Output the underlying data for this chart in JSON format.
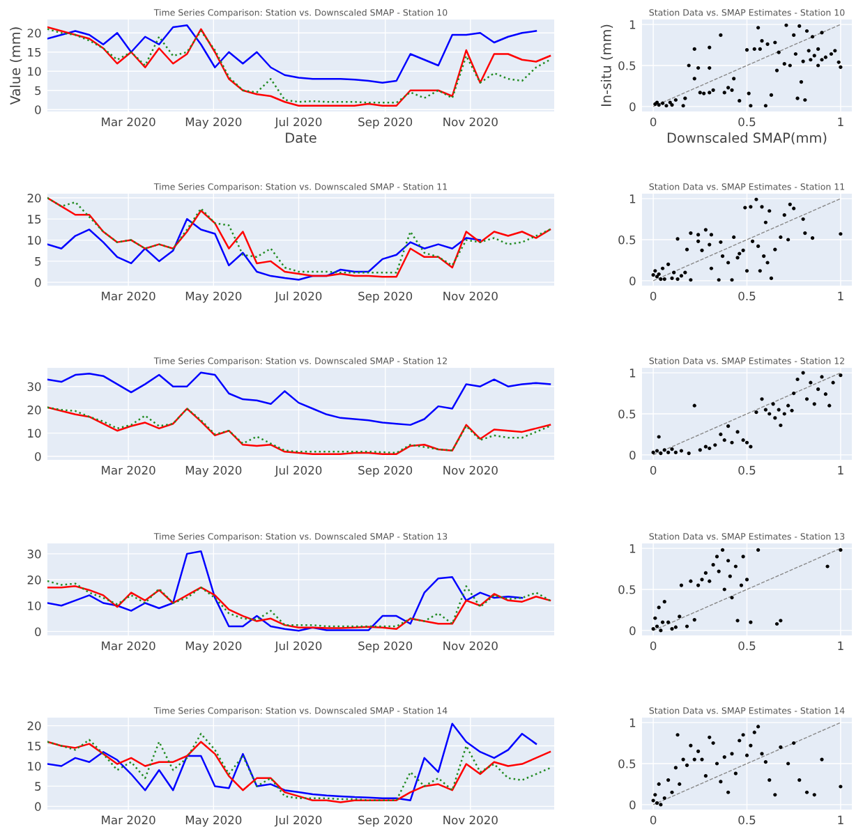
{
  "chart_data": [
    {
      "type": "line",
      "title": "Time Series Comparison: Station vs. Downscaled SMAP - Station 10",
      "xlabel": "Date",
      "ylabel": "Value (mm)",
      "grid": true,
      "xlim": [
        "2020-01-03",
        "2020-12-31"
      ],
      "xticks": [
        {
          "value": "2020-03-01",
          "label": "Mar 2020"
        },
        {
          "value": "2020-05-01",
          "label": "May 2020"
        },
        {
          "value": "2020-07-01",
          "label": "Jul 2020"
        },
        {
          "value": "2020-09-01",
          "label": "Sep 2020"
        },
        {
          "value": "2020-11-01",
          "label": "Nov 2020"
        }
      ],
      "ylim": [
        -0.5,
        23.5
      ],
      "yticks": [
        0,
        5,
        10,
        15,
        20
      ],
      "x": [
        "2020-01-03",
        "2020-01-13",
        "2020-01-23",
        "2020-02-02",
        "2020-02-12",
        "2020-02-22",
        "2020-03-03",
        "2020-03-13",
        "2020-03-23",
        "2020-04-02",
        "2020-04-12",
        "2020-04-22",
        "2020-05-02",
        "2020-05-12",
        "2020-05-22",
        "2020-06-01",
        "2020-06-11",
        "2020-06-21",
        "2020-07-01",
        "2020-07-11",
        "2020-07-21",
        "2020-07-31",
        "2020-08-10",
        "2020-08-20",
        "2020-08-30",
        "2020-09-09",
        "2020-09-19",
        "2020-09-29",
        "2020-10-09",
        "2020-10-19",
        "2020-10-29",
        "2020-11-08",
        "2020-11-18",
        "2020-11-28",
        "2020-12-08",
        "2020-12-18",
        "2020-12-28"
      ],
      "series": [
        {
          "color": "#0000ff",
          "line_style": "solid",
          "values": [
            18.5,
            19.5,
            20.5,
            19.5,
            17,
            20,
            15,
            19,
            17,
            21.5,
            22,
            17,
            11,
            15,
            12,
            15,
            11,
            9,
            8.3,
            8,
            8,
            8,
            7.8,
            7.5,
            7,
            7.5,
            14.5,
            13,
            11.5,
            19.5,
            19.5,
            20,
            17.5,
            19,
            20,
            20.5,
            null
          ]
        },
        {
          "color": "#ff0000",
          "line_style": "solid",
          "values": [
            21.5,
            20.5,
            19.5,
            18.5,
            16,
            12,
            15,
            11,
            16,
            12,
            14.5,
            21,
            15,
            8,
            5,
            4,
            3.5,
            2,
            1,
            1,
            1,
            1,
            1,
            1.5,
            1,
            1,
            5,
            5,
            5,
            3.5,
            15.5,
            7,
            14.5,
            14.5,
            13,
            12.5,
            14
          ]
        },
        {
          "color": "#228b22",
          "line_style": "dotted",
          "values": [
            21,
            20,
            19.5,
            18,
            16,
            13,
            15,
            11.5,
            19,
            14,
            15,
            20.5,
            15.5,
            8.5,
            5,
            4.5,
            8,
            2.5,
            2,
            2.2,
            2,
            2,
            2,
            1.8,
            1.8,
            1.8,
            4.5,
            3,
            5,
            3,
            14,
            7,
            9.5,
            8,
            7.5,
            11,
            13
          ]
        }
      ]
    },
    {
      "type": "scatter",
      "title": "Station Data vs. SMAP Estimates - Station 10",
      "xlabel": "Downscaled SMAP(mm)",
      "ylabel": "In-situ (mm)",
      "grid": true,
      "xlim": [
        -0.06,
        1.06
      ],
      "xticks": [
        0,
        0.5,
        1
      ],
      "ylim": [
        -0.06,
        1.06
      ],
      "yticks": [
        0,
        0.5,
        1
      ],
      "series": [
        {
          "color": "#000000",
          "marker": "circle",
          "x": [
            0.01,
            0.03,
            0.05,
            0.07,
            0.09,
            0.1,
            0.02,
            0.12,
            0.16,
            0.17,
            0.19,
            0.22,
            0.22,
            0.24,
            0.25,
            0.27,
            0.3,
            0.3,
            0.3,
            0.32,
            0.36,
            0.38,
            0.4,
            0.42,
            0.43,
            0.46,
            0.5,
            0.51,
            0.52,
            0.54,
            0.56,
            0.57,
            0.58,
            0.6,
            0.61,
            0.63,
            0.65,
            0.66,
            0.67,
            0.7,
            0.71,
            0.73,
            0.75,
            0.76,
            0.77,
            0.78,
            0.79,
            0.8,
            0.81,
            0.82,
            0.83,
            0.84,
            0.85,
            0.86,
            0.88,
            0.88,
            0.9,
            0.9,
            0.92,
            0.95,
            0.97,
            0.99,
            1.0
          ],
          "values": [
            0.03,
            0.02,
            0.04,
            0.01,
            0.05,
            0.02,
            0.05,
            0.08,
            0.01,
            0.1,
            0.5,
            0.7,
            0.34,
            0.47,
            0.17,
            0.16,
            0.72,
            0.47,
            0.17,
            0.2,
            0.87,
            0.17,
            0.23,
            0.2,
            0.34,
            0.07,
            0.69,
            0.16,
            0.01,
            0.7,
            0.96,
            0.7,
            0.8,
            0.01,
            0.76,
            0.14,
            0.78,
            0.44,
            0.66,
            0.52,
            0.99,
            0.5,
            0.87,
            0.64,
            0.1,
            0.98,
            0.3,
            0.55,
            0.08,
            0.92,
            0.68,
            0.57,
            0.85,
            0.62,
            0.7,
            0.5,
            0.9,
            0.57,
            0.6,
            0.64,
            0.68,
            0.54,
            0.48
          ]
        },
        {
          "type": "line",
          "color": "#888888",
          "line_style": "dashed",
          "x": [
            0,
            1
          ],
          "values": [
            0,
            1
          ]
        }
      ]
    },
    {
      "type": "line",
      "title": "Time Series Comparison: Station vs. Downscaled SMAP - Station 11",
      "grid": true,
      "xlim": [
        "2020-01-03",
        "2020-12-31"
      ],
      "xticks": [
        {
          "value": "2020-03-01",
          "label": "Mar 2020"
        },
        {
          "value": "2020-05-01",
          "label": "May 2020"
        },
        {
          "value": "2020-07-01",
          "label": "Jul 2020"
        },
        {
          "value": "2020-09-01",
          "label": "Sep 2020"
        },
        {
          "value": "2020-11-01",
          "label": "Nov 2020"
        }
      ],
      "ylim": [
        -0.8,
        21
      ],
      "yticks": [
        0,
        5,
        10,
        15,
        20
      ],
      "x": [
        "2020-01-03",
        "2020-01-13",
        "2020-01-23",
        "2020-02-02",
        "2020-02-12",
        "2020-02-22",
        "2020-03-03",
        "2020-03-13",
        "2020-03-23",
        "2020-04-02",
        "2020-04-12",
        "2020-04-22",
        "2020-05-02",
        "2020-05-12",
        "2020-05-22",
        "2020-06-01",
        "2020-06-11",
        "2020-06-21",
        "2020-07-01",
        "2020-07-11",
        "2020-07-21",
        "2020-07-31",
        "2020-08-10",
        "2020-08-20",
        "2020-08-30",
        "2020-09-09",
        "2020-09-19",
        "2020-09-29",
        "2020-10-09",
        "2020-10-19",
        "2020-10-29",
        "2020-11-08",
        "2020-11-18",
        "2020-11-28",
        "2020-12-08",
        "2020-12-18",
        "2020-12-28"
      ],
      "series": [
        {
          "color": "#0000ff",
          "line_style": "solid",
          "values": [
            9,
            8,
            11,
            12.5,
            9.5,
            6,
            4.5,
            8,
            5,
            7.5,
            15,
            12.5,
            11.5,
            4,
            7,
            2.5,
            1.5,
            1,
            0.6,
            1.5,
            1.5,
            3,
            2.5,
            2.5,
            5.5,
            6.5,
            9.5,
            8,
            9,
            8,
            10.5,
            10,
            null,
            null,
            null,
            null,
            null
          ]
        },
        {
          "color": "#ff0000",
          "line_style": "solid",
          "values": [
            20,
            18,
            16,
            16,
            12,
            9.5,
            10,
            8,
            9,
            8,
            12,
            17,
            14,
            8,
            12,
            4.5,
            5,
            2.5,
            2,
            1.5,
            1.5,
            2,
            1.5,
            1.5,
            1.3,
            1.3,
            8,
            6,
            6,
            3.5,
            12,
            9.5,
            12,
            11,
            12,
            10.5,
            12.5
          ]
        },
        {
          "color": "#228b22",
          "line_style": "dotted",
          "values": [
            20,
            18,
            19,
            15.5,
            12,
            9.5,
            10,
            8,
            9,
            8,
            12.5,
            17.5,
            14,
            13.5,
            6.5,
            6,
            8,
            3.5,
            2.5,
            2.5,
            2.5,
            2.3,
            2.3,
            2.3,
            2.3,
            2.3,
            12,
            7,
            6,
            4,
            10,
            9.5,
            10.5,
            9,
            9.5,
            11,
            12.5
          ]
        }
      ]
    },
    {
      "type": "scatter",
      "title": "Station Data vs. SMAP Estimates - Station 11",
      "grid": true,
      "xlim": [
        -0.06,
        1.06
      ],
      "xticks": [
        0,
        0.5,
        1
      ],
      "ylim": [
        -0.06,
        1.06
      ],
      "yticks": [
        0,
        0.5,
        1
      ],
      "series": [
        {
          "color": "#000000",
          "marker": "circle",
          "x": [
            0.0,
            0.01,
            0.02,
            0.03,
            0.04,
            0.05,
            0.06,
            0.08,
            0.1,
            0.11,
            0.13,
            0.13,
            0.15,
            0.17,
            0.18,
            0.2,
            0.2,
            0.24,
            0.24,
            0.26,
            0.28,
            0.3,
            0.31,
            0.31,
            0.35,
            0.36,
            0.37,
            0.4,
            0.42,
            0.43,
            0.45,
            0.46,
            0.48,
            0.49,
            0.5,
            0.52,
            0.53,
            0.55,
            0.56,
            0.57,
            0.58,
            0.59,
            0.6,
            0.61,
            0.62,
            0.63,
            0.65,
            0.68,
            0.7,
            0.72,
            0.73,
            0.75,
            0.8,
            0.81,
            0.85,
            1.0
          ],
          "values": [
            0.07,
            0.12,
            0.05,
            0.08,
            0.02,
            0.15,
            0.02,
            0.2,
            0.03,
            0.1,
            0.51,
            0.02,
            0.06,
            0.1,
            0.38,
            0.58,
            0.01,
            0.48,
            0.56,
            0.37,
            0.62,
            0.44,
            0.15,
            0.56,
            0.01,
            0.47,
            0.3,
            0.22,
            0.01,
            0.53,
            0.28,
            0.33,
            0.37,
            0.89,
            0.12,
            0.9,
            0.48,
            0.99,
            0.42,
            0.12,
            0.9,
            0.3,
            0.71,
            0.22,
            0.85,
            0.03,
            0.38,
            0.53,
            0.8,
            0.5,
            0.93,
            0.88,
            0.75,
            0.58,
            0.52,
            0.57
          ]
        },
        {
          "type": "line",
          "color": "#888888",
          "line_style": "dashed",
          "x": [
            0,
            1
          ],
          "values": [
            0,
            1
          ]
        }
      ]
    },
    {
      "type": "line",
      "title": "Time Series Comparison: Station vs. Downscaled SMAP - Station 12",
      "grid": true,
      "xlim": [
        "2020-01-03",
        "2020-12-31"
      ],
      "xticks": [
        {
          "value": "2020-03-01",
          "label": "Mar 2020"
        },
        {
          "value": "2020-05-01",
          "label": "May 2020"
        },
        {
          "value": "2020-07-01",
          "label": "Jul 2020"
        },
        {
          "value": "2020-09-01",
          "label": "Sep 2020"
        },
        {
          "value": "2020-11-01",
          "label": "Nov 2020"
        }
      ],
      "ylim": [
        -1.5,
        38
      ],
      "yticks": [
        0,
        10,
        20,
        30
      ],
      "x": [
        "2020-01-03",
        "2020-01-13",
        "2020-01-23",
        "2020-02-02",
        "2020-02-12",
        "2020-02-22",
        "2020-03-03",
        "2020-03-13",
        "2020-03-23",
        "2020-04-02",
        "2020-04-12",
        "2020-04-22",
        "2020-05-02",
        "2020-05-12",
        "2020-05-22",
        "2020-06-01",
        "2020-06-11",
        "2020-06-21",
        "2020-07-01",
        "2020-07-11",
        "2020-07-21",
        "2020-07-31",
        "2020-08-10",
        "2020-08-20",
        "2020-08-30",
        "2020-09-09",
        "2020-09-19",
        "2020-09-29",
        "2020-10-09",
        "2020-10-19",
        "2020-10-29",
        "2020-11-08",
        "2020-11-18",
        "2020-11-28",
        "2020-12-08",
        "2020-12-18",
        "2020-12-28"
      ],
      "series": [
        {
          "color": "#0000ff",
          "line_style": "solid",
          "values": [
            33,
            32,
            35,
            35.5,
            34.5,
            31,
            27.5,
            31,
            35,
            30,
            30,
            36,
            35,
            27,
            24.5,
            24,
            22.5,
            28,
            23,
            20.5,
            18,
            16.5,
            16,
            15.5,
            14.5,
            14,
            13.5,
            16,
            21.5,
            20.5,
            31,
            30,
            33,
            30,
            31,
            31.5,
            31
          ]
        },
        {
          "color": "#ff0000",
          "line_style": "solid",
          "values": [
            21,
            19.5,
            18,
            17,
            14,
            11,
            13,
            14.5,
            12,
            14,
            20.5,
            15,
            9,
            11,
            5,
            4.5,
            5,
            2,
            1.5,
            1,
            1,
            1,
            1.5,
            1.5,
            1,
            1,
            4.5,
            5,
            3,
            2.5,
            13.5,
            7.5,
            11.5,
            11,
            10.5,
            12,
            13.5
          ]
        },
        {
          "color": "#228b22",
          "line_style": "dotted",
          "values": [
            21,
            20,
            19.5,
            17,
            15,
            12,
            13.5,
            17.5,
            13,
            14,
            20.5,
            15.5,
            9.5,
            11,
            5.5,
            8.5,
            5.5,
            2.5,
            2,
            2,
            2,
            2,
            2,
            2,
            1.8,
            1.5,
            5,
            4,
            3,
            2.5,
            13,
            7,
            9,
            8,
            8,
            10.5,
            13
          ]
        }
      ]
    },
    {
      "type": "scatter",
      "title": "Station Data vs. SMAP Estimates - Station 12",
      "grid": true,
      "xlim": [
        -0.06,
        1.06
      ],
      "xticks": [
        0,
        0.5,
        1
      ],
      "ylim": [
        -0.06,
        1.06
      ],
      "yticks": [
        0,
        0.5,
        1
      ],
      "series": [
        {
          "color": "#000000",
          "marker": "circle",
          "x": [
            0.0,
            0.02,
            0.03,
            0.04,
            0.06,
            0.08,
            0.1,
            0.12,
            0.15,
            0.19,
            0.22,
            0.25,
            0.28,
            0.3,
            0.33,
            0.36,
            0.38,
            0.4,
            0.42,
            0.45,
            0.48,
            0.5,
            0.52,
            0.55,
            0.58,
            0.6,
            0.62,
            0.64,
            0.65,
            0.67,
            0.68,
            0.7,
            0.72,
            0.74,
            0.75,
            0.77,
            0.8,
            0.82,
            0.84,
            0.86,
            0.88,
            0.9,
            0.92,
            0.94,
            0.96,
            1.0
          ],
          "values": [
            0.03,
            0.05,
            0.22,
            0.02,
            0.06,
            0.03,
            0.07,
            0.03,
            0.05,
            0.02,
            0.6,
            0.06,
            0.1,
            0.08,
            0.12,
            0.25,
            0.18,
            0.35,
            0.15,
            0.28,
            0.18,
            0.15,
            0.1,
            0.52,
            0.68,
            0.55,
            0.5,
            0.62,
            0.45,
            0.55,
            0.36,
            0.5,
            0.6,
            0.54,
            0.75,
            0.92,
            1.0,
            0.68,
            0.88,
            0.62,
            0.8,
            0.95,
            0.74,
            0.6,
            0.88,
            0.97
          ]
        },
        {
          "type": "line",
          "color": "#888888",
          "line_style": "dashed",
          "x": [
            0,
            1
          ],
          "values": [
            0,
            1
          ]
        }
      ]
    },
    {
      "type": "line",
      "title": "Time Series Comparison: Station vs. Downscaled SMAP - Station 13",
      "grid": true,
      "xlim": [
        "2020-01-03",
        "2020-12-31"
      ],
      "xticks": [
        {
          "value": "2020-03-01",
          "label": "Mar 2020"
        },
        {
          "value": "2020-05-01",
          "label": "May 2020"
        },
        {
          "value": "2020-07-01",
          "label": "Jul 2020"
        },
        {
          "value": "2020-09-01",
          "label": "Sep 2020"
        },
        {
          "value": "2020-11-01",
          "label": "Nov 2020"
        }
      ],
      "ylim": [
        -1.5,
        34
      ],
      "yticks": [
        0,
        10,
        20,
        30
      ],
      "x": [
        "2020-01-03",
        "2020-01-13",
        "2020-01-23",
        "2020-02-02",
        "2020-02-12",
        "2020-02-22",
        "2020-03-03",
        "2020-03-13",
        "2020-03-23",
        "2020-04-02",
        "2020-04-12",
        "2020-04-22",
        "2020-05-02",
        "2020-05-12",
        "2020-05-22",
        "2020-06-01",
        "2020-06-11",
        "2020-06-21",
        "2020-07-01",
        "2020-07-11",
        "2020-07-21",
        "2020-07-31",
        "2020-08-10",
        "2020-08-20",
        "2020-08-30",
        "2020-09-09",
        "2020-09-19",
        "2020-09-29",
        "2020-10-09",
        "2020-10-19",
        "2020-10-29",
        "2020-11-08",
        "2020-11-18",
        "2020-11-28",
        "2020-12-08",
        "2020-12-18",
        "2020-12-28"
      ],
      "series": [
        {
          "color": "#0000ff",
          "line_style": "solid",
          "values": [
            11,
            10,
            12,
            14,
            11,
            10,
            8,
            11,
            9,
            11,
            30,
            31,
            13,
            2,
            2,
            6,
            2,
            1,
            0.3,
            1.5,
            0.5,
            0.5,
            0.5,
            0.5,
            6,
            6,
            3,
            15,
            20.5,
            21,
            12,
            15,
            13,
            13.5,
            13,
            null,
            null
          ]
        },
        {
          "color": "#ff0000",
          "line_style": "solid",
          "values": [
            17,
            17,
            17.5,
            16,
            14,
            9.5,
            15,
            12,
            16,
            11,
            14,
            17,
            14,
            8.5,
            6,
            4,
            5,
            2.5,
            1.5,
            1.5,
            1.3,
            1.3,
            1.5,
            1.8,
            1.5,
            1,
            5,
            4,
            3,
            3,
            12,
            10,
            14.5,
            12,
            11.5,
            13.5,
            12
          ]
        },
        {
          "color": "#228b22",
          "line_style": "dotted",
          "values": [
            19.5,
            18,
            18.5,
            15,
            13,
            10.5,
            14,
            11,
            16.5,
            11,
            13,
            17,
            13,
            7,
            5,
            4.5,
            8,
            2.5,
            2.5,
            2.5,
            2,
            2,
            2,
            2,
            2,
            2,
            5,
            4,
            7,
            3,
            17.5,
            9.5,
            14,
            12.5,
            13,
            15,
            12
          ]
        }
      ]
    },
    {
      "type": "scatter",
      "title": "Station Data vs. SMAP Estimates - Station 13",
      "grid": true,
      "xlim": [
        -0.06,
        1.06
      ],
      "xticks": [
        0,
        0.5,
        1
      ],
      "ylim": [
        -0.06,
        1.06
      ],
      "yticks": [
        0,
        0.5,
        1
      ],
      "series": [
        {
          "color": "#000000",
          "marker": "circle",
          "x": [
            0.0,
            0.01,
            0.02,
            0.03,
            0.04,
            0.05,
            0.06,
            0.08,
            0.1,
            0.12,
            0.14,
            0.15,
            0.18,
            0.2,
            0.22,
            0.24,
            0.26,
            0.28,
            0.3,
            0.32,
            0.34,
            0.35,
            0.37,
            0.38,
            0.4,
            0.41,
            0.42,
            0.44,
            0.45,
            0.47,
            0.48,
            0.5,
            0.52,
            0.56,
            0.66,
            0.68,
            0.93,
            1.0
          ],
          "values": [
            0.02,
            0.15,
            0.05,
            0.28,
            0.0,
            0.1,
            0.35,
            0.1,
            0.02,
            0.04,
            0.17,
            0.55,
            0.05,
            0.6,
            0.13,
            0.55,
            0.62,
            0.7,
            0.6,
            0.8,
            0.9,
            0.72,
            0.98,
            0.5,
            0.85,
            0.66,
            0.4,
            0.78,
            0.12,
            0.55,
            0.9,
            0.62,
            0.1,
            0.98,
            0.08,
            0.12,
            0.78,
            0.98
          ]
        },
        {
          "type": "line",
          "color": "#888888",
          "line_style": "dashed",
          "x": [
            0,
            1
          ],
          "values": [
            0,
            1
          ]
        }
      ]
    },
    {
      "type": "line",
      "title": "Time Series Comparison: Station vs. Downscaled SMAP - Station 14",
      "grid": true,
      "xlim": [
        "2020-01-03",
        "2020-12-31"
      ],
      "xticks": [
        {
          "value": "2020-03-01",
          "label": "Mar 2020"
        },
        {
          "value": "2020-05-01",
          "label": "May 2020"
        },
        {
          "value": "2020-07-01",
          "label": "Jul 2020"
        },
        {
          "value": "2020-09-01",
          "label": "Sep 2020"
        },
        {
          "value": "2020-11-01",
          "label": "Nov 2020"
        }
      ],
      "ylim": [
        -0.8,
        22
      ],
      "yticks": [
        0,
        5,
        10,
        15,
        20
      ],
      "x": [
        "2020-01-03",
        "2020-01-13",
        "2020-01-23",
        "2020-02-02",
        "2020-02-12",
        "2020-02-22",
        "2020-03-03",
        "2020-03-13",
        "2020-03-23",
        "2020-04-02",
        "2020-04-12",
        "2020-04-22",
        "2020-05-02",
        "2020-05-12",
        "2020-05-22",
        "2020-06-01",
        "2020-06-11",
        "2020-06-21",
        "2020-07-01",
        "2020-07-11",
        "2020-07-21",
        "2020-07-31",
        "2020-08-10",
        "2020-08-20",
        "2020-08-30",
        "2020-09-09",
        "2020-09-19",
        "2020-09-29",
        "2020-10-09",
        "2020-10-19",
        "2020-10-29",
        "2020-11-08",
        "2020-11-18",
        "2020-11-28",
        "2020-12-08",
        "2020-12-18",
        "2020-12-28"
      ],
      "series": [
        {
          "color": "#0000ff",
          "line_style": "solid",
          "values": [
            10.5,
            10,
            12,
            11,
            13.5,
            11.5,
            8,
            4,
            9,
            4,
            12.5,
            12.5,
            5,
            4.5,
            13,
            5,
            5.5,
            4,
            3.5,
            3,
            2.7,
            2.5,
            2.3,
            2.2,
            2,
            2,
            1.5,
            12,
            8.5,
            20.5,
            16,
            13.5,
            12,
            14,
            18,
            15.5,
            null
          ]
        },
        {
          "color": "#ff0000",
          "line_style": "solid",
          "values": [
            16,
            15,
            14.5,
            15.5,
            13,
            10.5,
            12,
            10,
            11,
            11,
            12.5,
            16,
            13,
            7.5,
            4,
            7,
            7,
            3.5,
            2.5,
            1.5,
            1.5,
            1,
            1.5,
            1.5,
            1.5,
            1.5,
            3.5,
            5,
            5.5,
            4,
            10.5,
            8,
            11,
            10,
            10.5,
            12,
            13.5
          ]
        },
        {
          "color": "#228b22",
          "line_style": "dotted",
          "values": [
            16,
            15,
            14,
            16.5,
            13,
            9,
            11,
            7,
            16,
            9,
            12,
            18,
            14,
            8,
            12.5,
            5,
            7,
            2.5,
            2,
            2,
            2,
            1.8,
            1.8,
            1.5,
            1.5,
            1.5,
            8.5,
            5,
            7,
            4,
            15,
            8.5,
            10.5,
            7,
            6.5,
            8,
            9.5
          ]
        }
      ]
    },
    {
      "type": "scatter",
      "title": "Station Data vs. SMAP Estimates - Station 14",
      "grid": true,
      "xlim": [
        -0.06,
        1.06
      ],
      "xticks": [
        0,
        0.5,
        1
      ],
      "ylim": [
        -0.06,
        1.06
      ],
      "yticks": [
        0,
        0.5,
        1
      ],
      "series": [
        {
          "color": "#000000",
          "marker": "circle",
          "x": [
            0.0,
            0.01,
            0.02,
            0.03,
            0.04,
            0.06,
            0.08,
            0.1,
            0.12,
            0.13,
            0.14,
            0.16,
            0.18,
            0.2,
            0.22,
            0.24,
            0.26,
            0.28,
            0.3,
            0.32,
            0.34,
            0.36,
            0.38,
            0.4,
            0.42,
            0.44,
            0.46,
            0.48,
            0.5,
            0.52,
            0.54,
            0.56,
            0.58,
            0.6,
            0.62,
            0.65,
            0.68,
            0.72,
            0.75,
            0.78,
            0.82,
            0.86,
            0.9,
            1.0
          ],
          "values": [
            0.05,
            0.12,
            0.02,
            0.25,
            0.0,
            0.08,
            0.3,
            0.15,
            0.45,
            0.85,
            0.25,
            0.55,
            0.48,
            0.72,
            0.55,
            0.65,
            0.55,
            0.35,
            0.82,
            0.75,
            0.5,
            0.28,
            0.58,
            0.15,
            0.62,
            0.38,
            0.78,
            0.85,
            0.6,
            0.72,
            0.88,
            0.95,
            0.62,
            0.52,
            0.3,
            0.12,
            0.7,
            0.5,
            0.75,
            0.3,
            0.15,
            0.12,
            0.55,
            0.22
          ]
        },
        {
          "type": "line",
          "color": "#888888",
          "line_style": "dashed",
          "x": [
            0,
            1
          ],
          "values": [
            0,
            1
          ]
        }
      ]
    }
  ]
}
